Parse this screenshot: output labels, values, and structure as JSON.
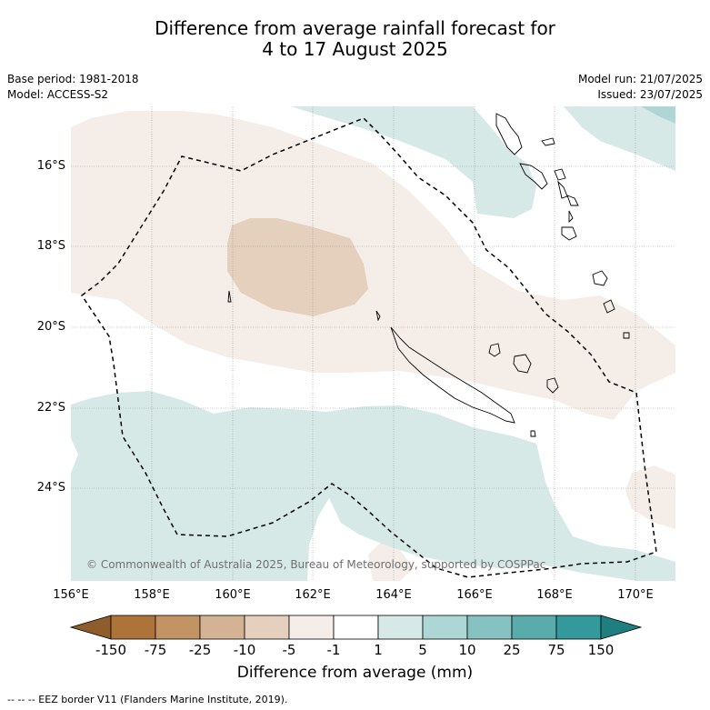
{
  "title_line1": "Difference from average rainfall forecast for",
  "title_line2": "4 to 17 August 2025",
  "meta_left": {
    "base_period": "Base period: 1981-2018",
    "model": "Model: ACCESS-S2"
  },
  "meta_right": {
    "model_run": "Model run: 21/07/2025",
    "issued": "Issued: 23/07/2025"
  },
  "y_ticks": [
    "16°S",
    "18°S",
    "20°S",
    "22°S",
    "24°S"
  ],
  "x_ticks": [
    "156°E",
    "158°E",
    "160°E",
    "162°E",
    "164°E",
    "166°E",
    "168°E",
    "170°E"
  ],
  "copyright": "© Commonwealth of Australia 2025, Bureau of Meteorology, supported by COSPPac",
  "colorbar": {
    "ticks": [
      "-150",
      "-75",
      "-25",
      "-10",
      "-5",
      "-1",
      "1",
      "5",
      "10",
      "25",
      "75",
      "150"
    ],
    "colors": [
      "#ad7339",
      "#c29463",
      "#d4b394",
      "#e4d0bd",
      "#f5eee8",
      "#ffffff",
      "#d6e9e7",
      "#aed6d5",
      "#86c2c2",
      "#5aacac",
      "#33999a"
    ],
    "extend_low_color": "#8f5c2c",
    "extend_high_color": "#1f7e7f",
    "label": "Difference from average (mm)"
  },
  "footnote": "--  --  -- EEZ border V11 (Flanders Marine Institute, 2019).",
  "colors": {
    "light_brown": "#f5eee8",
    "brown": "#e4d0bd",
    "light_teal": "#d6e9e7",
    "teal": "#aed6d5"
  }
}
